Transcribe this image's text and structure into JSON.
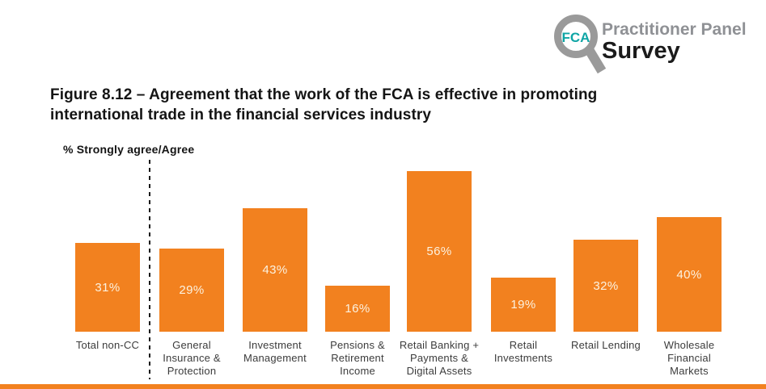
{
  "logo": {
    "fca_text": "FCA",
    "line1": "Practitioner Panel",
    "line2": "Survey"
  },
  "title": {
    "line1": "Figure 8.12 – Agreement that the work of the FCA is effective in promoting",
    "line2": "international trade in the financial services industry"
  },
  "chart_data": {
    "type": "bar",
    "title": "Figure 8.12 – Agreement that the work of the FCA is effective in promoting international trade in the financial services industry",
    "ylabel": "% Strongly agree/Agree",
    "categories": [
      "Total non-CC",
      "General Insurance & Protection",
      "Investment Management",
      "Pensions & Retirement Income",
      "Retail Banking + Payments & Digital Assets",
      "Retail Investments",
      "Retail Lending",
      "Wholesale Financial Markets"
    ],
    "category_lines": [
      [
        "Total non-CC"
      ],
      [
        "General",
        "Insurance &",
        "Protection"
      ],
      [
        "Investment",
        "Management"
      ],
      [
        "Pensions &",
        "Retirement",
        "Income"
      ],
      [
        "Retail Banking +",
        "Payments &",
        "Digital Assets"
      ],
      [
        "Retail",
        "Investments"
      ],
      [
        "Retail Lending"
      ],
      [
        "Wholesale",
        "Financial",
        "Markets"
      ]
    ],
    "values": [
      31,
      29,
      43,
      16,
      56,
      19,
      32,
      40
    ],
    "value_labels": [
      "31%",
      "29%",
      "43%",
      "16%",
      "56%",
      "19%",
      "32%",
      "40%"
    ],
    "ylim": [
      0,
      60
    ],
    "grid": false,
    "legend": false,
    "separator_after_category": "Total non-CC",
    "bar_color": "#F2811F",
    "value_label_color": "#FCF2E0"
  },
  "colors": {
    "accent_orange": "#F2811F",
    "logo_gray": "#9A9A9A",
    "logo_teal": "#0FA5A5",
    "logo_text_gray": "#8F9195",
    "title_black": "#141414"
  }
}
